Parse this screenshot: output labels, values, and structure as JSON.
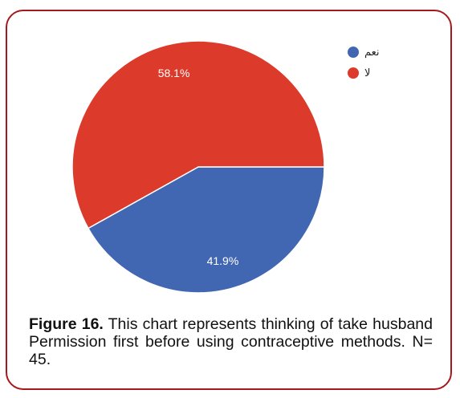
{
  "chart_data": {
    "type": "pie",
    "slices": [
      {
        "label": "نعم",
        "value": 41.9,
        "value_label": "41.9%",
        "color": "#4267b2"
      },
      {
        "label": "لا",
        "value": 58.1,
        "value_label": "58.1%",
        "color": "#dc3a2a"
      }
    ],
    "legend_position": "top-right"
  },
  "caption": {
    "label": "Figure 16.",
    "text": " This chart represents thinking of take husband Permission first before using contraceptive methods. N= 45."
  }
}
